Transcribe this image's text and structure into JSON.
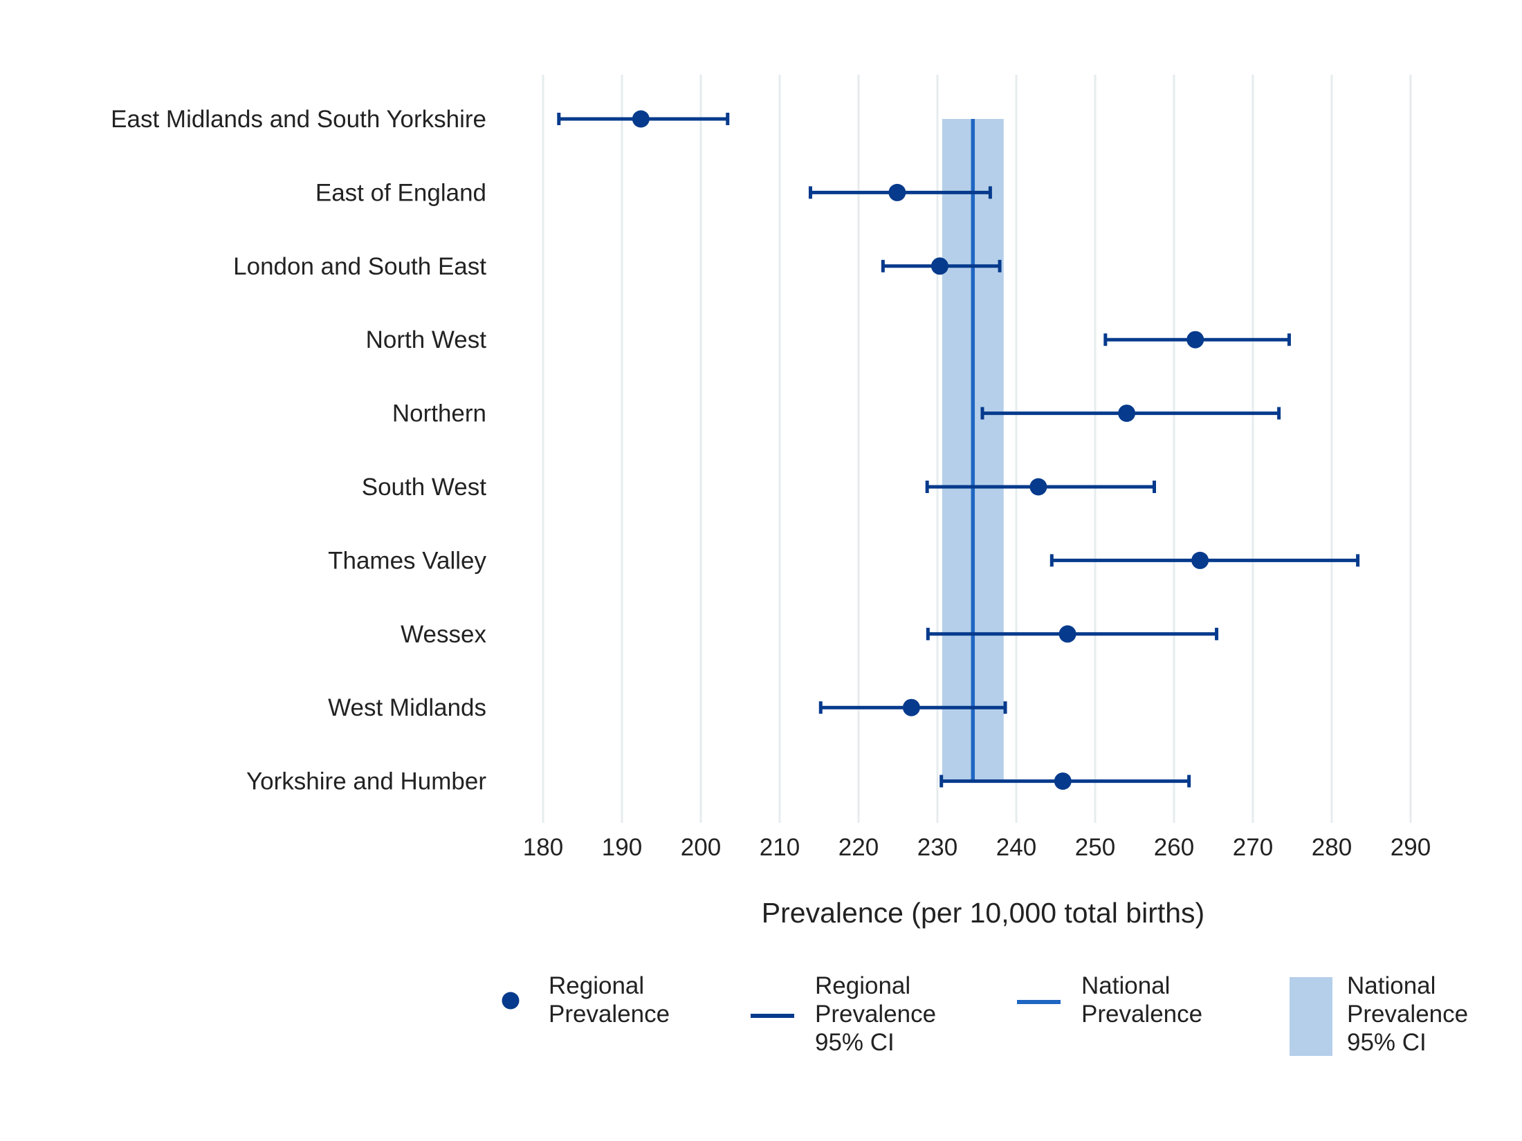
{
  "chart_data": {
    "type": "scatter",
    "xlabel": "Prevalence (per 10,000 total births)",
    "xlim": [
      180,
      290
    ],
    "xticks": [
      180,
      190,
      200,
      210,
      220,
      230,
      240,
      250,
      260,
      270,
      280,
      290
    ],
    "grid": "vertical",
    "legend_position": "bottom",
    "colors": {
      "regional": "#063a8c",
      "national_line": "#1f66c2",
      "national_band": "#b5cfea",
      "grid": "#e6ecee",
      "text": "#222222"
    },
    "categories": [
      "East Midlands and South Yorkshire",
      "East of England",
      "London and South East",
      "North West",
      "Northern",
      "South West",
      "Thames Valley",
      "Wessex",
      "West Midlands",
      "Yorkshire and Humber"
    ],
    "series": [
      {
        "name": "Regional Prevalence",
        "values": [
          192.4,
          224.9,
          230.3,
          262.7,
          254.0,
          242.8,
          263.3,
          246.5,
          226.7,
          245.9
        ],
        "ci_low": [
          182.0,
          213.9,
          223.1,
          251.3,
          235.7,
          228.7,
          244.5,
          228.8,
          215.2,
          230.5
        ],
        "ci_high": [
          203.4,
          236.7,
          237.9,
          274.6,
          273.3,
          257.5,
          283.3,
          265.4,
          238.6,
          261.9
        ]
      }
    ],
    "national": {
      "value": 234.5,
      "ci_low": 230.6,
      "ci_high": 238.4
    },
    "legend": [
      {
        "key": "regional_point",
        "lines": [
          "Regional",
          "Prevalence"
        ]
      },
      {
        "key": "regional_ci",
        "lines": [
          "Regional",
          "Prevalence",
          "95% CI"
        ]
      },
      {
        "key": "national_line",
        "lines": [
          "National",
          "Prevalence"
        ]
      },
      {
        "key": "national_band",
        "lines": [
          "National",
          "Prevalence",
          "95% CI"
        ]
      }
    ]
  }
}
